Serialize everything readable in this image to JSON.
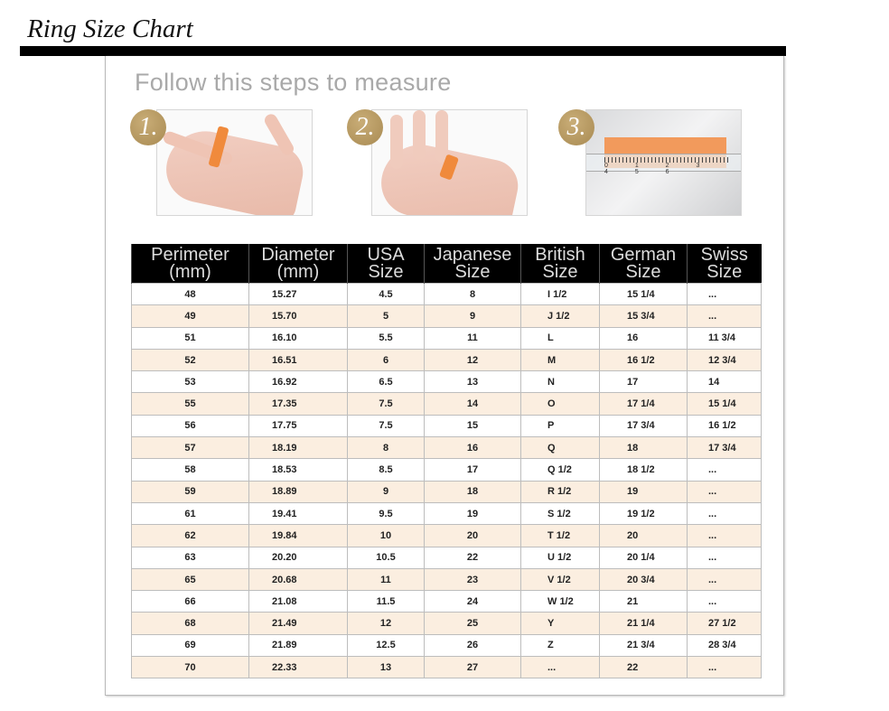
{
  "title": "Ring Size Chart",
  "steps": {
    "heading": "Follow this steps to measure",
    "badges": [
      "1.",
      "2.",
      "3."
    ],
    "ruler_numbers": "0 1 2 3 4 5 6"
  },
  "table": {
    "headers": [
      [
        "Perimeter",
        "(mm)"
      ],
      [
        "Diameter",
        "(mm)"
      ],
      [
        "USA",
        "Size"
      ],
      [
        "Japanese",
        "Size"
      ],
      [
        "British",
        "Size"
      ],
      [
        "German",
        "Size"
      ],
      [
        "Swiss",
        "Size"
      ]
    ],
    "rows": [
      [
        "48",
        "15.27",
        "4.5",
        "8",
        "I 1/2",
        "15 1/4",
        "..."
      ],
      [
        "49",
        "15.70",
        "5",
        "9",
        "J 1/2",
        "15 3/4",
        "..."
      ],
      [
        "51",
        "16.10",
        "5.5",
        "11",
        "L",
        "16",
        "11 3/4"
      ],
      [
        "52",
        "16.51",
        "6",
        "12",
        "M",
        "16 1/2",
        "12 3/4"
      ],
      [
        "53",
        "16.92",
        "6.5",
        "13",
        "N",
        "17",
        "14"
      ],
      [
        "55",
        "17.35",
        "7.5",
        "14",
        "O",
        "17 1/4",
        "15 1/4"
      ],
      [
        "56",
        "17.75",
        "7.5",
        "15",
        "P",
        "17 3/4",
        "16 1/2"
      ],
      [
        "57",
        "18.19",
        "8",
        "16",
        "Q",
        "18",
        "17 3/4"
      ],
      [
        "58",
        "18.53",
        "8.5",
        "17",
        "Q 1/2",
        "18 1/2",
        "..."
      ],
      [
        "59",
        "18.89",
        "9",
        "18",
        "R 1/2",
        "19",
        "..."
      ],
      [
        "61",
        "19.41",
        "9.5",
        "19",
        "S 1/2",
        "19 1/2",
        "..."
      ],
      [
        "62",
        "19.84",
        "10",
        "20",
        "T 1/2",
        "20",
        "..."
      ],
      [
        "63",
        "20.20",
        "10.5",
        "22",
        "U 1/2",
        "20 1/4",
        "..."
      ],
      [
        "65",
        "20.68",
        "11",
        "23",
        "V 1/2",
        "20 3/4",
        "..."
      ],
      [
        "66",
        "21.08",
        "11.5",
        "24",
        "W 1/2",
        "21",
        "..."
      ],
      [
        "68",
        "21.49",
        "12",
        "25",
        "Y",
        "21 1/4",
        "27 1/2"
      ],
      [
        "69",
        "21.89",
        "12.5",
        "26",
        "Z",
        "21 3/4",
        "28 3/4"
      ],
      [
        "70",
        "22.33",
        "13",
        "27",
        "...",
        "22",
        "..."
      ]
    ]
  },
  "colors": {
    "badge_gold": "#b0955f",
    "row_alt": "#fbeee0",
    "header_bg": "#000000",
    "tape_orange": "#f08a3c"
  }
}
